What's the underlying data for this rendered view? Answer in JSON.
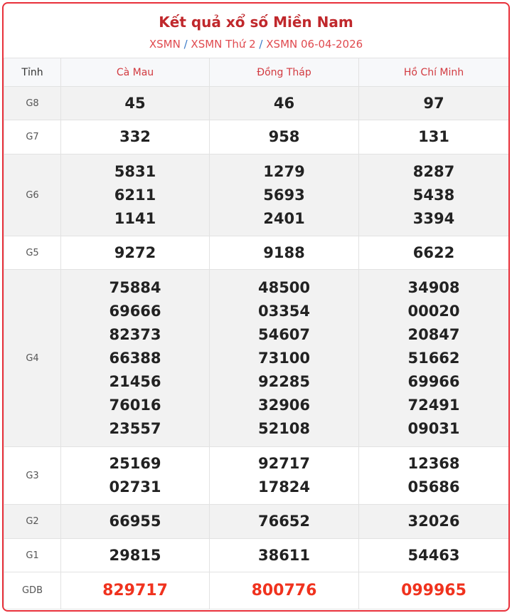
{
  "header": {
    "title": "Kết quả xổ số Miền Nam",
    "breadcrumb": [
      "XSMN",
      "XSMN Thứ 2",
      "XSMN 06-04-2026"
    ],
    "separator": "/"
  },
  "colors": {
    "accent": "#e8303a",
    "special_prize": "#f0321e",
    "province": "#d23a40"
  },
  "table": {
    "label_header": "Tỉnh",
    "provinces": [
      "Cà Mau",
      "Đồng Tháp",
      "Hồ Chí Minh"
    ],
    "rows": [
      {
        "label": "G8",
        "values": [
          [
            "45"
          ],
          [
            "46"
          ],
          [
            "97"
          ]
        ]
      },
      {
        "label": "G7",
        "values": [
          [
            "332"
          ],
          [
            "958"
          ],
          [
            "131"
          ]
        ]
      },
      {
        "label": "G6",
        "values": [
          [
            "5831",
            "6211",
            "1141"
          ],
          [
            "1279",
            "5693",
            "2401"
          ],
          [
            "8287",
            "5438",
            "3394"
          ]
        ]
      },
      {
        "label": "G5",
        "values": [
          [
            "9272"
          ],
          [
            "9188"
          ],
          [
            "6622"
          ]
        ]
      },
      {
        "label": "G4",
        "values": [
          [
            "75884",
            "69666",
            "82373",
            "66388",
            "21456",
            "76016",
            "23557"
          ],
          [
            "48500",
            "03354",
            "54607",
            "73100",
            "92285",
            "32906",
            "52108"
          ],
          [
            "34908",
            "00020",
            "20847",
            "51662",
            "69966",
            "72491",
            "09031"
          ]
        ]
      },
      {
        "label": "G3",
        "values": [
          [
            "25169",
            "02731"
          ],
          [
            "92717",
            "17824"
          ],
          [
            "12368",
            "05686"
          ]
        ]
      },
      {
        "label": "G2",
        "values": [
          [
            "66955"
          ],
          [
            "76652"
          ],
          [
            "32026"
          ]
        ]
      },
      {
        "label": "G1",
        "values": [
          [
            "29815"
          ],
          [
            "38611"
          ],
          [
            "54463"
          ]
        ]
      },
      {
        "label": "GDB",
        "values": [
          [
            "829717"
          ],
          [
            "800776"
          ],
          [
            "099965"
          ]
        ]
      }
    ]
  }
}
